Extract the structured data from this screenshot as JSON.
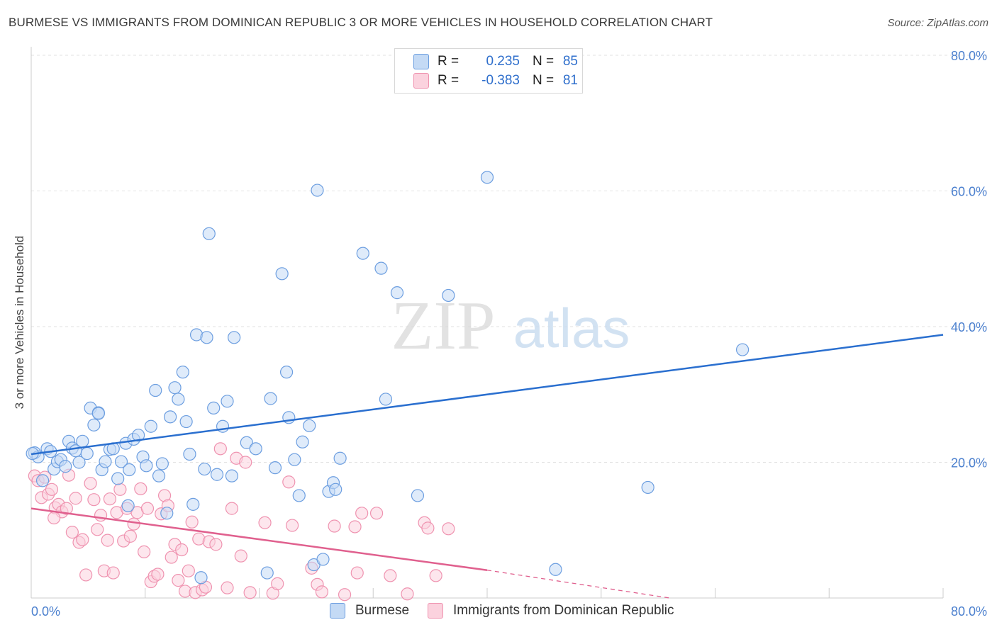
{
  "title": "BURMESE VS IMMIGRANTS FROM DOMINICAN REPUBLIC 3 OR MORE VEHICLES IN HOUSEHOLD CORRELATION CHART",
  "source": "Source: ZipAtlas.com",
  "watermark": {
    "zip": "ZIP",
    "atlas": "atlas"
  },
  "legend_top": {
    "rows": [
      {
        "r_label": "R =",
        "r_value": "0.235",
        "n_label": "N =",
        "n_value": "85",
        "color": "#aeccf2"
      },
      {
        "r_label": "R =",
        "r_value": "-0.383",
        "n_label": "N =",
        "n_value": "81",
        "color": "#f8bfd1"
      }
    ]
  },
  "legend_bottom": [
    {
      "label": "Burmese",
      "color": "#aeccf2"
    },
    {
      "label": "Immigrants from Dominican Republic",
      "color": "#f8bfd1"
    }
  ],
  "chart_data": {
    "type": "scatter",
    "title": "BURMESE VS IMMIGRANTS FROM DOMINICAN REPUBLIC 3 OR MORE VEHICLES IN HOUSEHOLD CORRELATION CHART",
    "xlabel": "",
    "ylabel": "3 or more Vehicles in Household",
    "xlim": [
      0,
      80
    ],
    "ylim": [
      0,
      80
    ],
    "x_tick_labels": [
      {
        "value": 0,
        "label": "0.0%"
      },
      {
        "value": 80,
        "label": "80.0%"
      }
    ],
    "y_tick_labels": [
      {
        "value": 20,
        "label": "20.0%"
      },
      {
        "value": 40,
        "label": "40.0%"
      },
      {
        "value": 60,
        "label": "60.0%"
      },
      {
        "value": 80,
        "label": "80.0%"
      }
    ],
    "grid": true,
    "series": [
      {
        "name": "Burmese",
        "stroke": "#6c9ee0",
        "fill": "#c4daf5",
        "line_color": "#2a6fcf",
        "trend": {
          "x0": 0,
          "y0": 21.2,
          "x1": 80,
          "y1": 38.8
        },
        "points": [
          [
            0.3,
            21.4
          ],
          [
            0.6,
            20.8
          ],
          [
            1.0,
            17.3
          ],
          [
            1.4,
            22.0
          ],
          [
            1.7,
            21.6
          ],
          [
            2.0,
            19.0
          ],
          [
            2.3,
            20.1
          ],
          [
            2.6,
            20.4
          ],
          [
            3.0,
            19.4
          ],
          [
            3.3,
            23.1
          ],
          [
            3.6,
            22.1
          ],
          [
            3.9,
            21.7
          ],
          [
            4.2,
            20.0
          ],
          [
            4.5,
            23.1
          ],
          [
            4.9,
            21.3
          ],
          [
            5.2,
            28.0
          ],
          [
            5.5,
            25.5
          ],
          [
            5.9,
            27.3
          ],
          [
            6.2,
            18.9
          ],
          [
            6.5,
            20.1
          ],
          [
            6.9,
            21.9
          ],
          [
            7.2,
            22.0
          ],
          [
            7.6,
            17.6
          ],
          [
            7.9,
            20.1
          ],
          [
            8.3,
            22.8
          ],
          [
            8.6,
            18.9
          ],
          [
            9.0,
            23.4
          ],
          [
            9.4,
            24.0
          ],
          [
            9.8,
            20.8
          ],
          [
            10.1,
            19.5
          ],
          [
            10.5,
            25.3
          ],
          [
            10.9,
            30.6
          ],
          [
            11.2,
            18.0
          ],
          [
            11.5,
            19.8
          ],
          [
            11.9,
            12.5
          ],
          [
            12.2,
            26.7
          ],
          [
            12.6,
            31.0
          ],
          [
            12.9,
            29.3
          ],
          [
            13.3,
            33.3
          ],
          [
            13.6,
            26.0
          ],
          [
            13.9,
            21.2
          ],
          [
            14.2,
            13.8
          ],
          [
            14.5,
            38.8
          ],
          [
            14.9,
            3.0
          ],
          [
            15.2,
            19.0
          ],
          [
            15.4,
            38.4
          ],
          [
            15.6,
            53.7
          ],
          [
            16.0,
            28.0
          ],
          [
            16.3,
            18.2
          ],
          [
            16.8,
            25.3
          ],
          [
            17.2,
            29.0
          ],
          [
            17.6,
            18.0
          ],
          [
            17.8,
            38.4
          ],
          [
            18.9,
            22.9
          ],
          [
            19.7,
            22.0
          ],
          [
            20.7,
            3.7
          ],
          [
            21.0,
            29.4
          ],
          [
            21.4,
            19.2
          ],
          [
            22.0,
            47.8
          ],
          [
            22.4,
            33.3
          ],
          [
            22.6,
            26.6
          ],
          [
            23.1,
            20.4
          ],
          [
            23.5,
            15.1
          ],
          [
            23.8,
            23.0
          ],
          [
            24.4,
            25.4
          ],
          [
            24.8,
            4.9
          ],
          [
            25.1,
            60.1
          ],
          [
            25.6,
            5.7
          ],
          [
            26.1,
            15.7
          ],
          [
            26.5,
            17.0
          ],
          [
            26.7,
            16.0
          ],
          [
            27.1,
            20.6
          ],
          [
            29.1,
            50.8
          ],
          [
            30.7,
            48.6
          ],
          [
            31.1,
            29.3
          ],
          [
            32.1,
            45.0
          ],
          [
            33.9,
            15.1
          ],
          [
            36.6,
            44.6
          ],
          [
            40.0,
            62.0
          ],
          [
            46.0,
            4.2
          ],
          [
            54.1,
            16.3
          ],
          [
            62.4,
            36.6
          ],
          [
            0.1,
            21.3
          ],
          [
            8.5,
            13.6
          ],
          [
            5.9,
            27.2
          ]
        ]
      },
      {
        "name": "Immigrants from Dominican Republic",
        "stroke": "#ef93b0",
        "fill": "#fbd2de",
        "line_color": "#e0608e",
        "trend": {
          "x0": 0,
          "y0": 13.2,
          "x1": 40,
          "y1": 4.1
        },
        "trend_dashed": {
          "x0": 40,
          "y0": 4.1,
          "x1": 56,
          "y1": 0.0
        },
        "points": [
          [
            0.3,
            18.0
          ],
          [
            0.6,
            17.3
          ],
          [
            0.9,
            14.8
          ],
          [
            1.2,
            17.8
          ],
          [
            1.5,
            15.3
          ],
          [
            1.8,
            16.0
          ],
          [
            2.1,
            13.3
          ],
          [
            2.4,
            13.8
          ],
          [
            2.7,
            12.7
          ],
          [
            3.1,
            13.2
          ],
          [
            3.3,
            18.1
          ],
          [
            3.6,
            9.7
          ],
          [
            3.9,
            14.7
          ],
          [
            4.2,
            8.2
          ],
          [
            4.5,
            8.6
          ],
          [
            4.8,
            3.4
          ],
          [
            5.2,
            16.9
          ],
          [
            5.5,
            14.5
          ],
          [
            5.8,
            10.1
          ],
          [
            6.1,
            12.2
          ],
          [
            6.4,
            4.0
          ],
          [
            6.7,
            8.5
          ],
          [
            6.9,
            14.6
          ],
          [
            7.2,
            3.7
          ],
          [
            7.5,
            12.6
          ],
          [
            7.8,
            16.0
          ],
          [
            8.1,
            8.4
          ],
          [
            8.4,
            13.2
          ],
          [
            8.7,
            9.1
          ],
          [
            9.0,
            10.9
          ],
          [
            9.3,
            12.6
          ],
          [
            9.6,
            16.1
          ],
          [
            9.9,
            6.8
          ],
          [
            10.2,
            13.2
          ],
          [
            10.5,
            2.4
          ],
          [
            10.8,
            3.2
          ],
          [
            11.1,
            3.5
          ],
          [
            11.4,
            12.4
          ],
          [
            11.7,
            15.1
          ],
          [
            12.0,
            13.6
          ],
          [
            12.3,
            6.0
          ],
          [
            12.6,
            7.9
          ],
          [
            12.9,
            2.6
          ],
          [
            13.2,
            7.1
          ],
          [
            13.5,
            1.0
          ],
          [
            13.8,
            4.0
          ],
          [
            14.1,
            11.2
          ],
          [
            14.4,
            0.8
          ],
          [
            14.7,
            8.7
          ],
          [
            15.0,
            1.2
          ],
          [
            15.3,
            1.6
          ],
          [
            15.6,
            8.3
          ],
          [
            16.2,
            7.9
          ],
          [
            16.6,
            22.0
          ],
          [
            17.2,
            1.5
          ],
          [
            17.6,
            13.2
          ],
          [
            18.0,
            20.6
          ],
          [
            18.4,
            6.2
          ],
          [
            18.8,
            20.0
          ],
          [
            19.2,
            0.8
          ],
          [
            20.5,
            11.1
          ],
          [
            21.2,
            0.7
          ],
          [
            21.6,
            2.1
          ],
          [
            22.6,
            17.1
          ],
          [
            22.9,
            10.7
          ],
          [
            24.6,
            4.4
          ],
          [
            25.1,
            2.0
          ],
          [
            25.5,
            0.9
          ],
          [
            26.6,
            10.6
          ],
          [
            27.5,
            0.5
          ],
          [
            28.4,
            10.5
          ],
          [
            28.6,
            3.7
          ],
          [
            29.0,
            12.5
          ],
          [
            30.3,
            12.5
          ],
          [
            31.5,
            3.3
          ],
          [
            33.0,
            0.6
          ],
          [
            34.5,
            11.1
          ],
          [
            34.8,
            10.3
          ],
          [
            35.5,
            3.3
          ],
          [
            36.6,
            10.2
          ],
          [
            2.0,
            11.8
          ]
        ]
      }
    ]
  }
}
